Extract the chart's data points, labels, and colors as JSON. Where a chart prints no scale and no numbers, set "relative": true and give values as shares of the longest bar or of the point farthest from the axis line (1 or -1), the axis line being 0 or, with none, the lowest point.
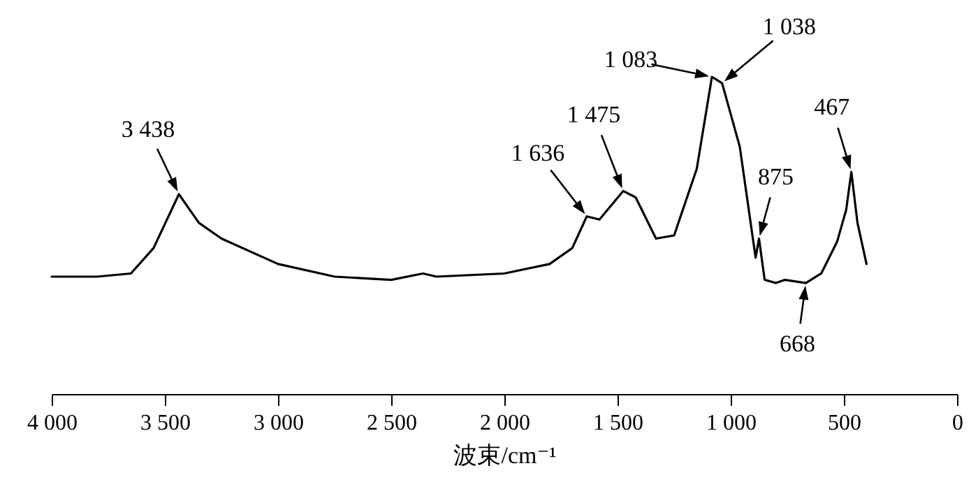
{
  "chart_data": {
    "type": "line",
    "relative": true,
    "xlabel": "波束/cm⁻¹",
    "xlim": [
      4000,
      0
    ],
    "xticks": [
      {
        "value": 4000,
        "label": "4 000"
      },
      {
        "value": 3500,
        "label": "3 500"
      },
      {
        "value": 3000,
        "label": "3 000"
      },
      {
        "value": 2500,
        "label": "2 500"
      },
      {
        "value": 2000,
        "label": "2 000"
      },
      {
        "value": 1500,
        "label": "1 500"
      },
      {
        "value": 1000,
        "label": "1 000"
      },
      500,
      0
    ],
    "grid": false,
    "legend": false,
    "marker": "none",
    "line_style": "solid",
    "series": [
      {
        "color": "#000000",
        "x": [
          4000,
          3800,
          3650,
          3550,
          3438,
          3350,
          3250,
          3000,
          2750,
          2500,
          2360,
          2300,
          2000,
          1800,
          1700,
          1636,
          1580,
          1475,
          1420,
          1330,
          1250,
          1150,
          1083,
          1060,
          1038,
          960,
          890,
          875,
          850,
          800,
          760,
          668,
          600,
          530,
          490,
          467,
          440,
          400
        ],
        "values": [
          0.37,
          0.37,
          0.38,
          0.46,
          0.63,
          0.54,
          0.49,
          0.41,
          0.37,
          0.36,
          0.38,
          0.37,
          0.38,
          0.41,
          0.46,
          0.56,
          0.55,
          0.64,
          0.62,
          0.49,
          0.5,
          0.71,
          1.0,
          0.99,
          0.98,
          0.78,
          0.43,
          0.49,
          0.36,
          0.35,
          0.36,
          0.35,
          0.38,
          0.48,
          0.58,
          0.7,
          0.54,
          0.41
        ]
      }
    ],
    "annotations": [
      {
        "text": "3 438",
        "x": 3438,
        "y": 0.63
      },
      {
        "text": "1 636",
        "x": 1636,
        "y": 0.56
      },
      {
        "text": "1 475",
        "x": 1475,
        "y": 0.64
      },
      {
        "text": "1 083",
        "x": 1083,
        "y": 1.0
      },
      {
        "text": "1 038",
        "x": 1038,
        "y": 0.98
      },
      {
        "text": "875",
        "x": 875,
        "y": 0.49
      },
      {
        "text": "668",
        "x": 668,
        "y": 0.35
      },
      {
        "text": "467",
        "x": 467,
        "y": 0.7
      }
    ]
  }
}
